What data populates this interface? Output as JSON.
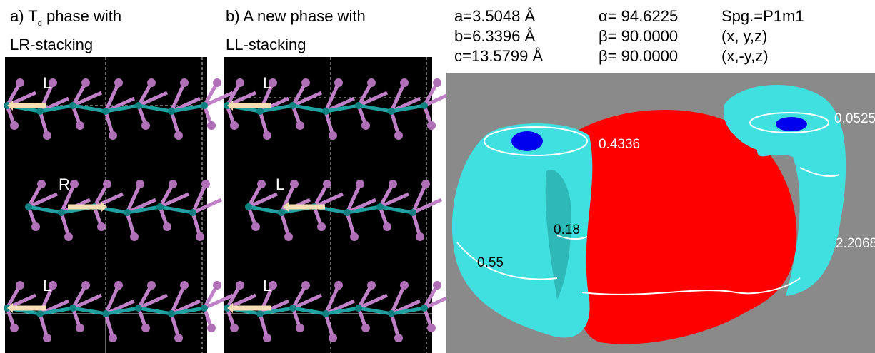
{
  "panels": [
    {
      "title": {
        "prefix": "a) T",
        "subscript": "d",
        "suffix": " phase with"
      },
      "subtitle": "LR-stacking",
      "layer_labels": [
        "L",
        "R",
        "L"
      ]
    },
    {
      "title": "b) A new phase with",
      "subtitle": "LL-stacking",
      "layer_labels": [
        "L",
        "L",
        "L"
      ]
    }
  ],
  "lattice": {
    "rows": [
      [
        "a=3.5048 Å",
        "α= 94.6225",
        "Spg.=P1m1"
      ],
      [
        "b=6.3396 Å",
        "β= 90.0000",
        "(x, y,z)"
      ],
      [
        "c=13.5799 Å",
        "β= 90.0000",
        "(x,-y,z)"
      ]
    ]
  },
  "isosurface_labels": [
    "0.0525",
    "0.4336",
    "0.18",
    "0.55",
    "2.2068"
  ]
}
